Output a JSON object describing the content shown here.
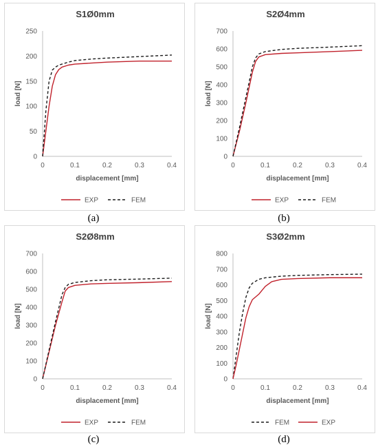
{
  "colors": {
    "exp": "#c0202a",
    "fem": "#1a1a1a",
    "axis": "#bfbfbf",
    "text": "#595959"
  },
  "chart_data": [
    {
      "type": "line",
      "title": "S1Ø0mm",
      "xlabel": "displacement [mm]",
      "ylabel": "load [N]",
      "xlim": [
        0,
        0.4
      ],
      "ylim": [
        0,
        250
      ],
      "xticks": [
        0,
        0.1,
        0.2,
        0.3,
        0.4
      ],
      "xtick_labels": [
        "0",
        "0.1",
        "0.2",
        "0.3",
        "0.4"
      ],
      "yticks": [
        0,
        50,
        100,
        150,
        200,
        250
      ],
      "ytick_labels": [
        "0",
        "50",
        "100",
        "150",
        "200",
        "250"
      ],
      "grid": false,
      "legend_position": "bottom",
      "legend": [
        "EXP",
        "FEM"
      ],
      "caption": "(a)",
      "series": [
        {
          "name": "EXP",
          "style": "solid",
          "x": [
            0,
            0.01,
            0.02,
            0.03,
            0.04,
            0.05,
            0.06,
            0.08,
            0.1,
            0.15,
            0.2,
            0.3,
            0.4
          ],
          "y": [
            0,
            50,
            100,
            140,
            163,
            173,
            178,
            182,
            184,
            186,
            188,
            190,
            190
          ]
        },
        {
          "name": "FEM",
          "style": "dashed",
          "x": [
            0,
            0.01,
            0.02,
            0.03,
            0.04,
            0.05,
            0.06,
            0.08,
            0.1,
            0.15,
            0.2,
            0.3,
            0.4
          ],
          "y": [
            0,
            90,
            150,
            172,
            178,
            182,
            184,
            188,
            191,
            194,
            196,
            199,
            202
          ]
        }
      ]
    },
    {
      "type": "line",
      "title": "S2Ø4mm",
      "xlabel": "displacement [mm]",
      "ylabel": "load [N]",
      "xlim": [
        0,
        0.4
      ],
      "ylim": [
        0,
        700
      ],
      "xticks": [
        0,
        0.1,
        0.2,
        0.3,
        0.4
      ],
      "xtick_labels": [
        "0",
        "0.1",
        "0.2",
        "0.3",
        "0.4"
      ],
      "yticks": [
        0,
        100,
        200,
        300,
        400,
        500,
        600,
        700
      ],
      "ytick_labels": [
        "0",
        "100",
        "200",
        "300",
        "400",
        "500",
        "600",
        "700"
      ],
      "grid": false,
      "legend_position": "bottom",
      "legend": [
        "EXP",
        "FEM"
      ],
      "caption": "(b)",
      "series": [
        {
          "name": "EXP",
          "style": "solid",
          "x": [
            0,
            0.02,
            0.04,
            0.06,
            0.07,
            0.08,
            0.1,
            0.15,
            0.2,
            0.3,
            0.4
          ],
          "y": [
            0,
            140,
            300,
            470,
            530,
            555,
            568,
            575,
            578,
            585,
            592
          ]
        },
        {
          "name": "FEM",
          "style": "dashed",
          "x": [
            0,
            0.02,
            0.04,
            0.06,
            0.07,
            0.08,
            0.1,
            0.15,
            0.2,
            0.3,
            0.4
          ],
          "y": [
            0,
            160,
            330,
            500,
            550,
            572,
            585,
            597,
            603,
            610,
            618
          ]
        }
      ]
    },
    {
      "type": "line",
      "title": "S2Ø8mm",
      "xlabel": "displacement [mm]",
      "ylabel": "load [N]",
      "xlim": [
        0,
        0.4
      ],
      "ylim": [
        0,
        700
      ],
      "xticks": [
        0,
        0.1,
        0.2,
        0.3,
        0.4
      ],
      "xtick_labels": [
        "0",
        "0.1",
        "0.2",
        "0.3",
        "0.4"
      ],
      "yticks": [
        0,
        100,
        200,
        300,
        400,
        500,
        600,
        700
      ],
      "ytick_labels": [
        "0",
        "100",
        "200",
        "300",
        "400",
        "500",
        "600",
        "700"
      ],
      "grid": false,
      "legend_position": "bottom",
      "legend": [
        "EXP",
        "FEM"
      ],
      "caption": "(c)",
      "series": [
        {
          "name": "EXP",
          "style": "solid",
          "x": [
            0,
            0.02,
            0.04,
            0.06,
            0.07,
            0.08,
            0.1,
            0.15,
            0.2,
            0.3,
            0.4
          ],
          "y": [
            0,
            150,
            300,
            430,
            490,
            510,
            522,
            530,
            533,
            537,
            543
          ]
        },
        {
          "name": "FEM",
          "style": "dashed",
          "x": [
            0,
            0.02,
            0.04,
            0.06,
            0.07,
            0.08,
            0.1,
            0.15,
            0.2,
            0.3,
            0.4
          ],
          "y": [
            0,
            160,
            320,
            470,
            510,
            528,
            538,
            548,
            553,
            557,
            562
          ]
        }
      ]
    },
    {
      "type": "line",
      "title": "S3Ø2mm",
      "xlabel": "displacement [mm]",
      "ylabel": "load [N]",
      "xlim": [
        0,
        0.4
      ],
      "ylim": [
        0,
        800
      ],
      "xticks": [
        0,
        0.1,
        0.2,
        0.3,
        0.4
      ],
      "xtick_labels": [
        "0",
        "0.1",
        "0.2",
        "0.3",
        "0.4"
      ],
      "yticks": [
        0,
        100,
        200,
        300,
        400,
        500,
        600,
        700,
        800
      ],
      "ytick_labels": [
        "0",
        "100",
        "200",
        "300",
        "400",
        "500",
        "600",
        "700",
        "800"
      ],
      "grid": false,
      "legend_position": "bottom",
      "legend": [
        "FEM",
        "EXP"
      ],
      "caption": "(d)",
      "series": [
        {
          "name": "FEM",
          "style": "dashed",
          "x": [
            0,
            0.01,
            0.02,
            0.03,
            0.04,
            0.05,
            0.06,
            0.08,
            0.1,
            0.15,
            0.2,
            0.3,
            0.4
          ],
          "y": [
            0,
            150,
            300,
            420,
            520,
            580,
            610,
            635,
            645,
            655,
            660,
            665,
            668
          ]
        },
        {
          "name": "EXP",
          "style": "solid",
          "x": [
            0,
            0.01,
            0.02,
            0.03,
            0.04,
            0.05,
            0.06,
            0.08,
            0.1,
            0.12,
            0.15,
            0.2,
            0.3,
            0.4
          ],
          "y": [
            0,
            90,
            190,
            290,
            390,
            460,
            505,
            540,
            590,
            620,
            635,
            640,
            645,
            645
          ]
        }
      ]
    }
  ]
}
